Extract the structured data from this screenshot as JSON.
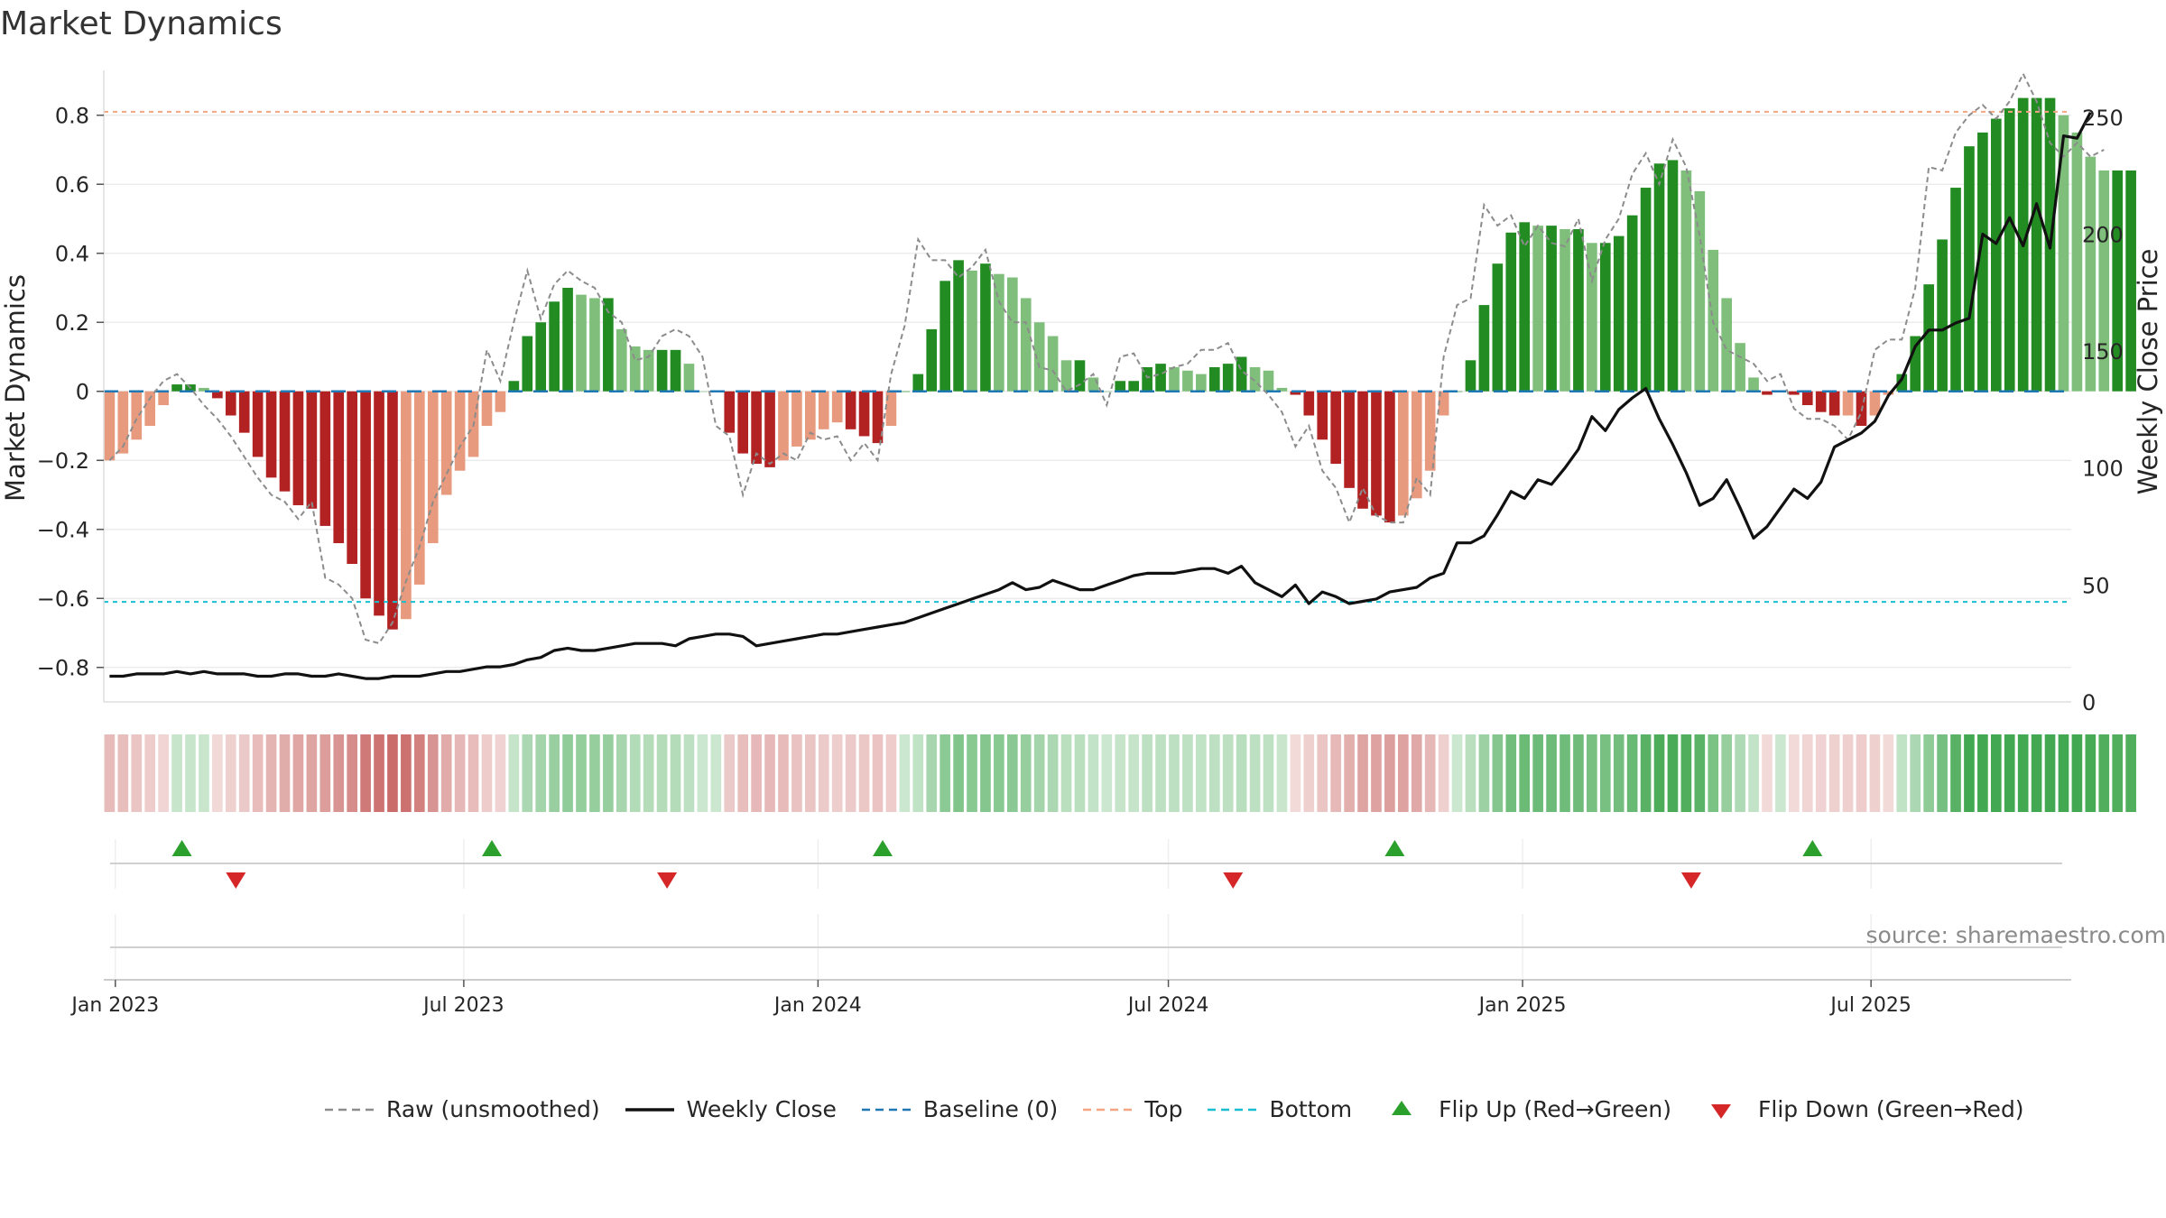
{
  "chart_data": {
    "title": "Market Dynamics",
    "type": "bar",
    "x_start": "2022-12-26",
    "x_step_days": 7,
    "xlim": [
      "2022-12-26",
      "2025-10-13"
    ],
    "x_tick_labels": [
      "Jan 2023",
      "Jul 2023",
      "Jan 2024",
      "Jul 2024",
      "Jan 2025",
      "Jul 2025"
    ],
    "x_tick_dates": [
      "2023-01-01",
      "2023-07-01",
      "2024-01-01",
      "2024-07-01",
      "2025-01-01",
      "2025-07-01"
    ],
    "ylabel": "Market Dynamics",
    "ylim": [
      -0.9,
      0.93
    ],
    "yticks": [
      -0.8,
      -0.6,
      -0.4,
      -0.2,
      0,
      0.2,
      0.4,
      0.6,
      0.8
    ],
    "ytick_labels": [
      "−0.8",
      "−0.6",
      "−0.4",
      "−0.2",
      "0",
      "0.2",
      "0.4",
      "0.6",
      "0.8"
    ],
    "y2label": "Weekly Close Price",
    "y2lim": [
      0,
      270
    ],
    "y2ticks": [
      0,
      50,
      100,
      150,
      200,
      250
    ],
    "y2tick_labels": [
      "0",
      "50",
      "100",
      "150",
      "200",
      "250"
    ],
    "top_level": 0.81,
    "bottom_level": -0.61,
    "baseline": 0,
    "grid": true,
    "legend_position": "bottom-center",
    "colors": {
      "strong_red": "#b22222",
      "light_red": "#e79a7d",
      "strong_green": "#228b22",
      "light_green": "#7fbf7b",
      "raw": "#8c8c8c",
      "close": "#111111",
      "baseline": "#1f77b4",
      "top": "#f4a582",
      "bottom": "#17becf",
      "flip_up": "#2ca02c",
      "flip_down": "#d62728"
    },
    "series": [
      {
        "name": "Market Dynamics (smoothed)",
        "values": [
          -0.2,
          -0.18,
          -0.14,
          -0.1,
          -0.04,
          0.02,
          0.02,
          0.01,
          -0.02,
          -0.07,
          -0.12,
          -0.19,
          -0.25,
          -0.29,
          -0.33,
          -0.34,
          -0.39,
          -0.44,
          -0.5,
          -0.6,
          -0.65,
          -0.69,
          -0.66,
          -0.56,
          -0.44,
          -0.3,
          -0.23,
          -0.19,
          -0.1,
          -0.06,
          0.03,
          0.16,
          0.2,
          0.26,
          0.3,
          0.28,
          0.27,
          0.27,
          0.18,
          0.13,
          0.12,
          0.12,
          0.12,
          0.08,
          0,
          0,
          -0.12,
          -0.18,
          -0.21,
          -0.22,
          -0.2,
          -0.16,
          -0.14,
          -0.11,
          -0.09,
          -0.11,
          -0.13,
          -0.15,
          -0.1,
          0,
          0.05,
          0.18,
          0.32,
          0.38,
          0.35,
          0.37,
          0.34,
          0.33,
          0.27,
          0.2,
          0.16,
          0.09,
          0.09,
          0.04,
          0,
          0.03,
          0.03,
          0.07,
          0.08,
          0.07,
          0.06,
          0.05,
          0.07,
          0.08,
          0.1,
          0.07,
          0.06,
          0.01,
          -0.01,
          -0.07,
          -0.14,
          -0.21,
          -0.28,
          -0.34,
          -0.36,
          -0.38,
          -0.36,
          -0.31,
          -0.23,
          -0.07,
          0,
          0.09,
          0.25,
          0.37,
          0.46,
          0.49,
          0.48,
          0.48,
          0.47,
          0.47,
          0.43,
          0.43,
          0.45,
          0.51,
          0.59,
          0.66,
          0.67,
          0.64,
          0.58,
          0.41,
          0.27,
          0.14,
          0.04,
          -0.01,
          0,
          -0.01,
          -0.04,
          -0.06,
          -0.07,
          -0.07,
          -0.1,
          -0.07,
          -0.01,
          0.05,
          0.16,
          0.31,
          0.44,
          0.59,
          0.71,
          0.75,
          0.79,
          0.82,
          0.85,
          0.85,
          0.85,
          0.8,
          0.75,
          0.68,
          0.64,
          0.64,
          0.64
        ]
      },
      {
        "name": "Raw (unsmoothed)",
        "values": [
          -0.2,
          -0.16,
          -0.08,
          -0.02,
          0.03,
          0.05,
          0.01,
          -0.04,
          -0.08,
          -0.13,
          -0.19,
          -0.25,
          -0.3,
          -0.32,
          -0.37,
          -0.32,
          -0.54,
          -0.56,
          -0.6,
          -0.72,
          -0.73,
          -0.67,
          -0.55,
          -0.45,
          -0.32,
          -0.24,
          -0.16,
          -0.1,
          0.12,
          0.03,
          0.2,
          0.35,
          0.21,
          0.31,
          0.35,
          0.32,
          0.3,
          0.23,
          0.2,
          0.09,
          0.1,
          0.16,
          0.18,
          0.16,
          0.1,
          -0.1,
          -0.13,
          -0.3,
          -0.18,
          -0.21,
          -0.18,
          -0.2,
          -0.12,
          -0.14,
          -0.13,
          -0.2,
          -0.15,
          -0.2,
          0.05,
          0.19,
          0.44,
          0.38,
          0.38,
          0.33,
          0.36,
          0.41,
          0.26,
          0.2,
          0.2,
          0.07,
          0.06,
          0,
          0.02,
          0.05,
          -0.04,
          0.1,
          0.11,
          0.04,
          0.05,
          0.07,
          0.08,
          0.12,
          0.12,
          0.14,
          0.06,
          0.03,
          -0.01,
          -0.06,
          -0.16,
          -0.1,
          -0.23,
          -0.28,
          -0.38,
          -0.28,
          -0.36,
          -0.38,
          -0.38,
          -0.25,
          -0.3,
          0.1,
          0.25,
          0.27,
          0.54,
          0.48,
          0.51,
          0.42,
          0.48,
          0.43,
          0.42,
          0.5,
          0.32,
          0.44,
          0.5,
          0.63,
          0.69,
          0.6,
          0.73,
          0.65,
          0.45,
          0.2,
          0.12,
          0.1,
          0.08,
          0.03,
          0.05,
          -0.05,
          -0.08,
          -0.08,
          -0.1,
          -0.14,
          -0.06,
          0.12,
          0.15,
          0.15,
          0.3,
          0.65,
          0.64,
          0.75,
          0.8,
          0.83,
          0.79,
          0.84,
          0.92,
          0.84,
          0.72,
          0.68,
          0.72,
          0.68,
          0.7
        ]
      },
      {
        "name": "Weekly Close",
        "axis": "right",
        "values": [
          11,
          11,
          12,
          12,
          12,
          13,
          12,
          13,
          12,
          12,
          12,
          11,
          11,
          12,
          12,
          11,
          11,
          12,
          11,
          10,
          10,
          11,
          11,
          11,
          12,
          13,
          13,
          14,
          15,
          15,
          16,
          18,
          19,
          22,
          23,
          22,
          22,
          23,
          24,
          25,
          25,
          25,
          24,
          27,
          28,
          29,
          29,
          28,
          24,
          25,
          26,
          27,
          28,
          29,
          29,
          30,
          31,
          32,
          33,
          34,
          36,
          38,
          40,
          42,
          44,
          46,
          48,
          51,
          48,
          49,
          52,
          50,
          48,
          48,
          50,
          52,
          54,
          55,
          55,
          55,
          56,
          57,
          57,
          55,
          58,
          51,
          48,
          45,
          50,
          42,
          47,
          45,
          42,
          43,
          44,
          47,
          48,
          49,
          53,
          55,
          68,
          68,
          71,
          80,
          90,
          87,
          95,
          93,
          100,
          108,
          122,
          116,
          125,
          130,
          134,
          121,
          110,
          98,
          84,
          87,
          95,
          83,
          70,
          75,
          83,
          91,
          87,
          94,
          109,
          112,
          115,
          120,
          131,
          138,
          152,
          159,
          159,
          162,
          164,
          200,
          196,
          207,
          195,
          213,
          194,
          242,
          241,
          252
        ]
      }
    ],
    "legend": [
      {
        "label": "Raw (unsmoothed)",
        "style": "dashed",
        "color": "#8c8c8c"
      },
      {
        "label": "Weekly Close",
        "style": "solid",
        "color": "#111111"
      },
      {
        "label": "Baseline (0)",
        "style": "dashed",
        "color": "#1f77b4"
      },
      {
        "label": "Top",
        "style": "dashed",
        "color": "#f4a582"
      },
      {
        "label": "Bottom",
        "style": "dashed",
        "color": "#17becf"
      },
      {
        "label": "Flip Up (Red→Green)",
        "style": "triangle-up",
        "color": "#2ca02c"
      },
      {
        "label": "Flip Down (Green→Red)",
        "style": "triangle-down",
        "color": "#d62728"
      }
    ],
    "regime_strip": [
      -0.2,
      -0.18,
      -0.14,
      -0.1,
      -0.04,
      0.02,
      0.02,
      0.01,
      -0.02,
      -0.07,
      -0.12,
      -0.19,
      -0.25,
      -0.29,
      -0.33,
      -0.34,
      -0.39,
      -0.44,
      -0.5,
      -0.6,
      -0.65,
      -0.69,
      -0.66,
      -0.56,
      -0.44,
      -0.3,
      -0.23,
      -0.19,
      -0.1,
      -0.06,
      0.03,
      0.16,
      0.2,
      0.26,
      0.3,
      0.28,
      0.27,
      0.27,
      0.18,
      0.13,
      0.12,
      0.12,
      0.12,
      0.08,
      0,
      0,
      -0.12,
      -0.18,
      -0.21,
      -0.22,
      -0.2,
      -0.16,
      -0.14,
      -0.11,
      -0.09,
      -0.11,
      -0.13,
      -0.15,
      -0.1,
      0,
      0.05,
      0.18,
      0.32,
      0.38,
      0.35,
      0.37,
      0.34,
      0.33,
      0.27,
      0.2,
      0.16,
      0.09,
      0.09,
      0.04,
      0,
      0.03,
      0.03,
      0.07,
      0.08,
      0.07,
      0.06,
      0.05,
      0.07,
      0.08,
      0.1,
      0.07,
      0.06,
      0.01,
      -0.01,
      -0.07,
      -0.14,
      -0.21,
      -0.28,
      -0.34,
      -0.36,
      -0.38,
      -0.36,
      -0.31,
      -0.23,
      -0.07,
      0,
      0.09,
      0.25,
      0.37,
      0.46,
      0.49,
      0.48,
      0.48,
      0.47,
      0.47,
      0.43,
      0.43,
      0.45,
      0.51,
      0.59,
      0.66,
      0.67,
      0.64,
      0.58,
      0.41,
      0.27,
      0.14,
      0.04,
      -0.01,
      0,
      -0.01,
      -0.04,
      -0.06,
      -0.07,
      -0.07,
      -0.1,
      -0.07,
      -0.01,
      0.05,
      0.16,
      0.31,
      0.44,
      0.59,
      0.71,
      0.75,
      0.79,
      0.82,
      0.85,
      0.85,
      0.85,
      0.8,
      0.75,
      0.68,
      0.64,
      0.64,
      0.64
    ],
    "flips_up": [
      "2023-02-06",
      "2023-07-17",
      "2024-02-05",
      "2024-10-28",
      "2025-06-02"
    ],
    "flips_down": [
      "2023-03-06",
      "2023-10-16",
      "2024-08-05",
      "2025-03-31"
    ],
    "annotation": "source: sharemaestro.com"
  }
}
